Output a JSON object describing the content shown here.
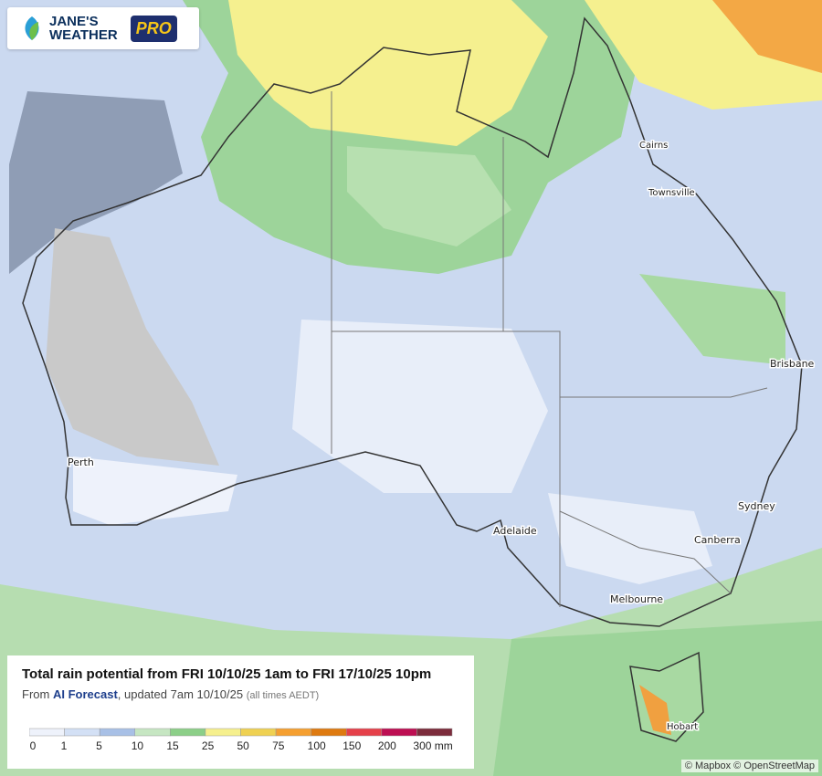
{
  "logo": {
    "line1": "JANE'S",
    "line2": "WEATHER",
    "badge": "PRO"
  },
  "cities": [
    "Cairns",
    "Townsville",
    "Brisbane",
    "Perth",
    "Sydney",
    "Adelaide",
    "Canberra",
    "Melbourne",
    "Hobart"
  ],
  "legend": {
    "title": "Total rain potential from FRI 10/10/25 1am to FRI 17/10/25 10pm",
    "subtitle": {
      "prefix": "From",
      "source": "AI Forecast",
      "updated": ", updated 7am 10/10/25",
      "note": "(all times AEDT)"
    },
    "labels": [
      "0",
      "1",
      "5",
      "10",
      "15",
      "25",
      "50",
      "75",
      "100",
      "150",
      "200",
      "300 mm"
    ],
    "colors": [
      "#eef2fb",
      "#d3e0f5",
      "#a8c0e6",
      "#c6e6c2",
      "#8ccf88",
      "#f6f08e",
      "#efd152",
      "#f59f30",
      "#de7a10",
      "#e5404a",
      "#bd0f52",
      "#7c2c3c"
    ]
  },
  "attribution": "© Mapbox © OpenStreetMap"
}
